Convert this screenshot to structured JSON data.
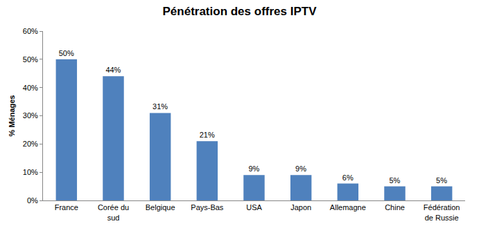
{
  "chart_data": {
    "type": "bar",
    "title": "Pénétration des offres IPTV",
    "y_label": "% Ménages",
    "categories": [
      "France",
      "Corée du sud",
      "Belgique",
      "Pays-Bas",
      "USA",
      "Japon",
      "Allemagne",
      "Chine",
      "Fédération de Russie"
    ],
    "values": [
      50,
      44,
      31,
      21,
      9,
      9,
      6,
      5,
      5
    ],
    "value_labels": [
      "50%",
      "44%",
      "31%",
      "21%",
      "9%",
      "9%",
      "6%",
      "5%",
      "5%"
    ],
    "data_labels": true,
    "color": "#4f81bd",
    "ylim": [
      0,
      60
    ],
    "yticks": [
      {
        "value": 0,
        "label": "0%"
      },
      {
        "value": 10,
        "label": "10%"
      },
      {
        "value": 20,
        "label": "20%"
      },
      {
        "value": 30,
        "label": "30%"
      },
      {
        "value": 40,
        "label": "40%"
      },
      {
        "value": 50,
        "label": "50%"
      },
      {
        "value": 60,
        "label": "60%"
      }
    ],
    "grid": false
  }
}
